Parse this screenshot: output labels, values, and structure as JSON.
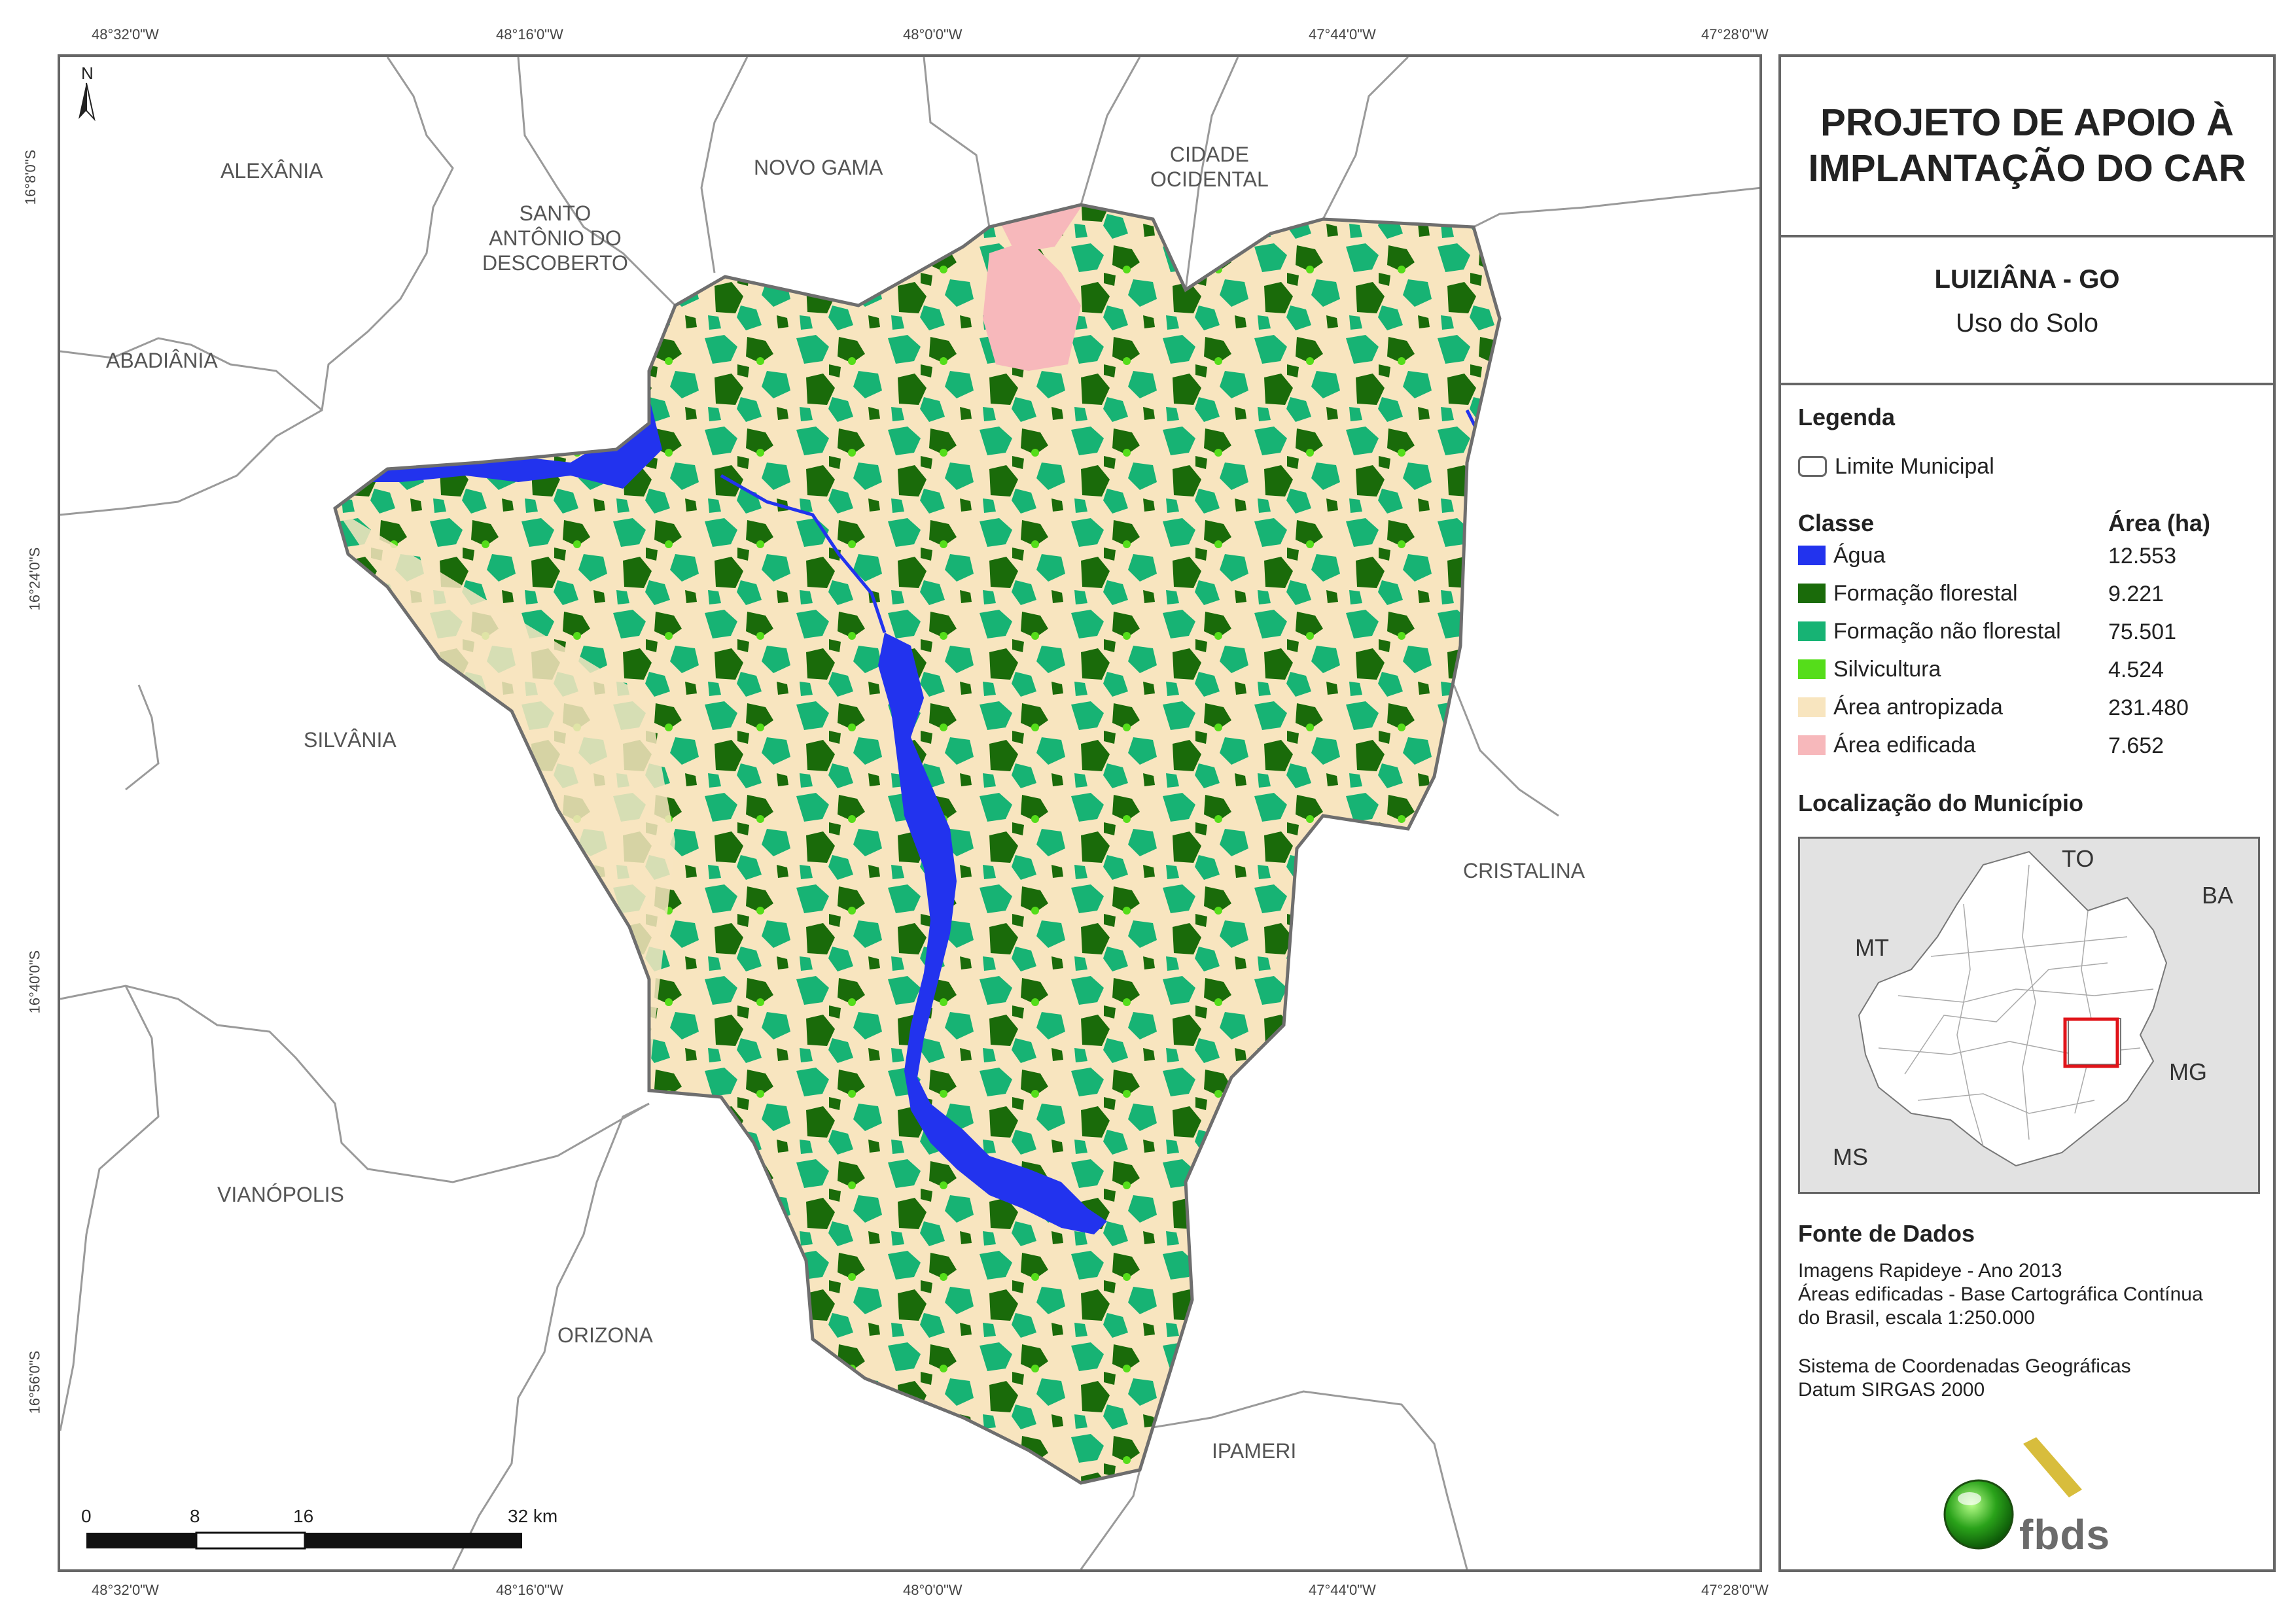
{
  "coordinates": {
    "top": [
      "48°32'0\"W",
      "48°16'0\"W",
      "48°0'0\"W",
      "47°44'0\"W",
      "47°28'0\"W"
    ],
    "bottom": [
      "48°32'0\"W",
      "48°16'0\"W",
      "48°0'0\"W",
      "47°44'0\"W",
      "47°28'0\"W"
    ],
    "left": [
      "16°8'0\"S",
      "16°24'0\"S",
      "16°40'0\"S",
      "16°56'0\"S"
    ]
  },
  "map": {
    "north_label": "N",
    "municipalities": {
      "alexania": "ALEXÂNIA",
      "santo_antonio": "SANTO\nANTÔNIO DO\nDESCOBERTO",
      "novo_gama": "NOVO GAMA",
      "cidade_ocidental": "CIDADE\nOCIDENTAL",
      "abadiania": "ABADIÂNIA",
      "silvania": "SILVÂNIA",
      "cristalina": "CRISTALINA",
      "vianopolis": "VIANÓPOLIS",
      "orizona": "ORIZONA",
      "ipameri": "IPAMERI"
    },
    "scale": {
      "labels": [
        "0",
        "8",
        "16",
        "32 km"
      ]
    }
  },
  "panel": {
    "title": "PROJETO DE APOIO À IMPLANTAÇÃO DO CAR",
    "municipality": "LUIZIÂNA - GO",
    "theme": "Uso do Solo",
    "legend": {
      "heading": "Legenda",
      "boundary_label": "Limite Municipal",
      "class_heading": "Classe",
      "area_heading": "Área (ha)",
      "classes": [
        {
          "label": "Água",
          "area": "12.553",
          "color": "#2233ee"
        },
        {
          "label": "Formação florestal",
          "area": "9.221",
          "color": "#1a6b0a"
        },
        {
          "label": "Formação não florestal",
          "area": "75.501",
          "color": "#17b374"
        },
        {
          "label": "Silvicultura",
          "area": "4.524",
          "color": "#55dd1a"
        },
        {
          "label": "Área antropizada",
          "area": "231.480",
          "color": "#f8e5bf"
        },
        {
          "label": "Área edificada",
          "area": "7.652",
          "color": "#f7b8bb"
        }
      ]
    },
    "location": {
      "heading": "Localização do Município",
      "states": {
        "to": "TO",
        "ba": "BA",
        "mt": "MT",
        "mg": "MG",
        "ms": "MS"
      }
    },
    "sources": {
      "heading": "Fonte de Dados",
      "lines": [
        "Imagens Rapideye - Ano 2013",
        "Áreas edificadas - Base Cartográfica Contínua",
        "do Brasil, escala 1:250.000"
      ],
      "crs_lines": [
        "Sistema de Coordenadas Geográficas",
        "Datum SIRGAS 2000"
      ]
    },
    "logo_text": "fbds"
  }
}
